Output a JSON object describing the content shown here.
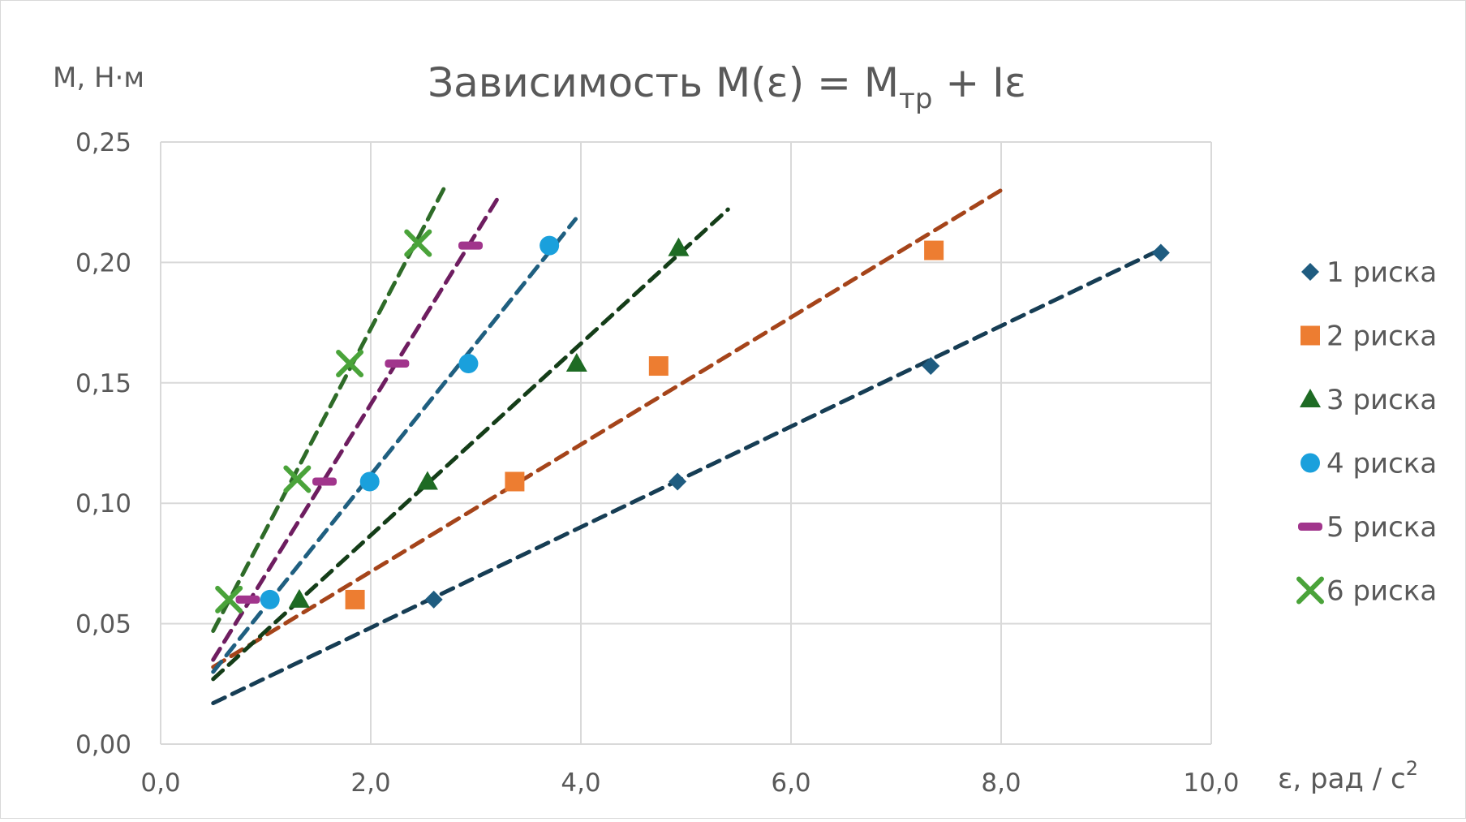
{
  "chart_data": {
    "type": "scatter",
    "title": {
      "text": "Зависимость M(ε) = M",
      "subscript": "тр",
      "suffix": " + Iε"
    },
    "xlabel": {
      "text": "ε, рад / с",
      "superscript": "2"
    },
    "ylabel": "M, Н·м",
    "xlim": [
      0,
      10
    ],
    "ylim": [
      0,
      0.25
    ],
    "x_ticks": [
      0,
      2,
      4,
      6,
      8,
      10
    ],
    "x_tick_labels": [
      "0,0",
      "2,0",
      "4,0",
      "6,0",
      "8,0",
      "10,0"
    ],
    "y_ticks": [
      0,
      0.05,
      0.1,
      0.15,
      0.2,
      0.25
    ],
    "y_tick_labels": [
      "0,00",
      "0,05",
      "0,10",
      "0,15",
      "0,20",
      "0,25"
    ],
    "grid": true,
    "legend_position": "right",
    "series": [
      {
        "name": "1 риска",
        "marker": "diamond",
        "color": "#1f5c80",
        "trend_color": "#163d54",
        "points": [
          [
            2.6,
            0.06
          ],
          [
            4.92,
            0.109
          ],
          [
            7.33,
            0.157
          ],
          [
            9.52,
            0.204
          ]
        ],
        "trendline": [
          [
            0.5,
            0.017
          ],
          [
            9.5,
            0.205
          ]
        ]
      },
      {
        "name": "2 риска",
        "marker": "square",
        "color": "#ed7d31",
        "trend_color": "#a5441a",
        "points": [
          [
            1.85,
            0.06
          ],
          [
            3.37,
            0.109
          ],
          [
            4.74,
            0.157
          ],
          [
            7.36,
            0.205
          ]
        ],
        "trendline": [
          [
            0.5,
            0.032
          ],
          [
            8.0,
            0.23
          ]
        ]
      },
      {
        "name": "3 риска",
        "marker": "triangle",
        "color": "#1e6b24",
        "trend_color": "#143d18",
        "points": [
          [
            1.32,
            0.06
          ],
          [
            2.54,
            0.109
          ],
          [
            3.96,
            0.158
          ],
          [
            4.93,
            0.206
          ]
        ],
        "trendline": [
          [
            0.5,
            0.027
          ],
          [
            5.4,
            0.222
          ]
        ]
      },
      {
        "name": "4 риска",
        "marker": "circle",
        "color": "#1aa0dc",
        "trend_color": "#1f5f80",
        "points": [
          [
            1.04,
            0.06
          ],
          [
            1.99,
            0.109
          ],
          [
            2.93,
            0.158
          ],
          [
            3.7,
            0.207
          ]
        ],
        "trendline": [
          [
            0.5,
            0.03
          ],
          [
            3.95,
            0.218
          ]
        ]
      },
      {
        "name": "5 риска",
        "marker": "dash",
        "color": "#a1358c",
        "trend_color": "#6e1d60",
        "points": [
          [
            0.83,
            0.06
          ],
          [
            1.56,
            0.109
          ],
          [
            2.25,
            0.158
          ],
          [
            2.95,
            0.207
          ]
        ],
        "trendline": [
          [
            0.5,
            0.035
          ],
          [
            3.2,
            0.226
          ]
        ]
      },
      {
        "name": "6 риска",
        "marker": "x",
        "color": "#4aa33a",
        "trend_color": "#2e6b28",
        "points": [
          [
            0.65,
            0.06
          ],
          [
            1.3,
            0.11
          ],
          [
            1.8,
            0.158
          ],
          [
            2.45,
            0.208
          ]
        ],
        "trendline": [
          [
            0.5,
            0.047
          ],
          [
            2.7,
            0.231
          ]
        ]
      }
    ]
  }
}
